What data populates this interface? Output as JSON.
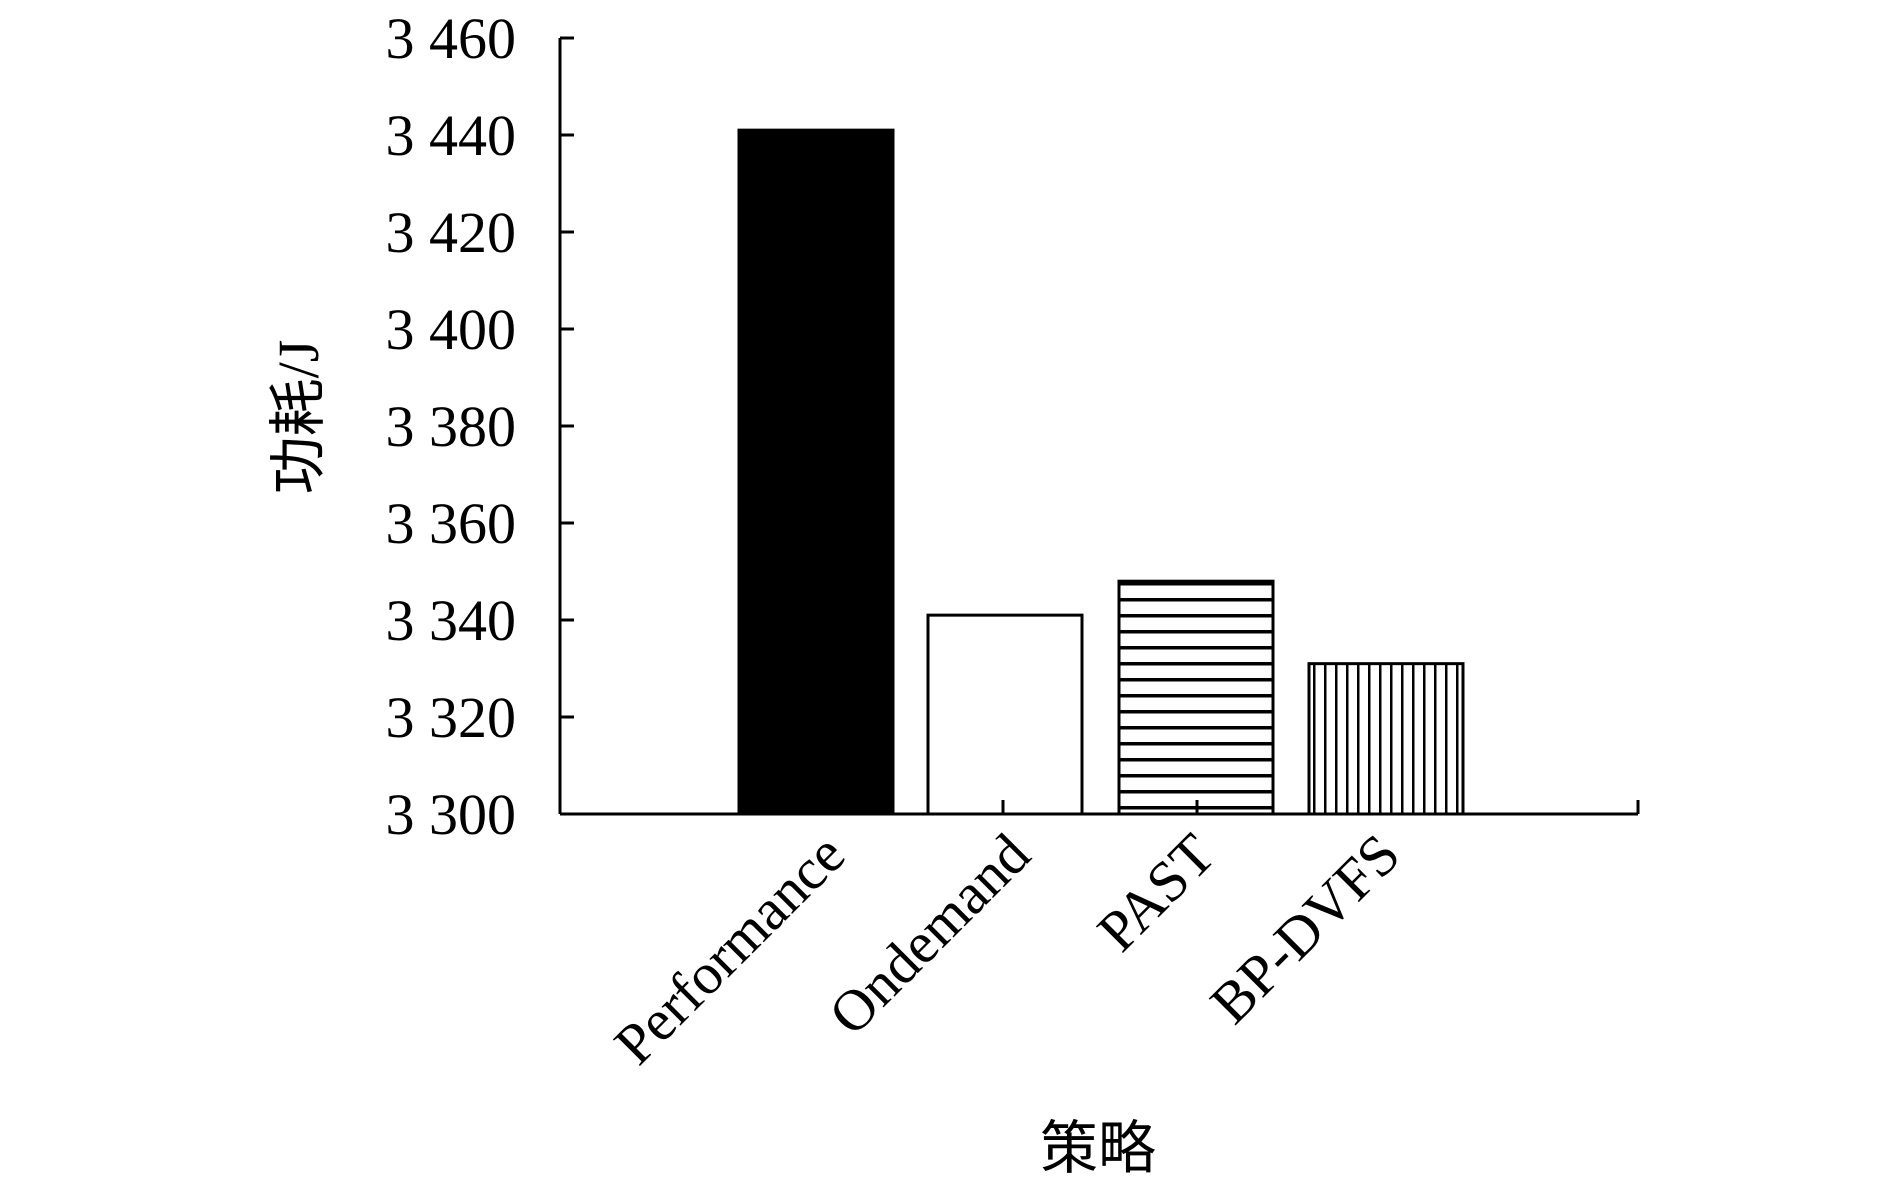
{
  "chart_data": {
    "type": "bar",
    "title": "",
    "xlabel": "策略",
    "ylabel": "功耗/J",
    "categories": [
      "Performance",
      "Ondemand",
      "PAST",
      "BP-DVFS"
    ],
    "values": [
      3441,
      3341,
      3348,
      3331
    ],
    "ylim": [
      3300,
      3460
    ],
    "yticks": [
      3300,
      3320,
      3340,
      3360,
      3380,
      3400,
      3420,
      3440,
      3460
    ],
    "ytick_labels": [
      "3 300",
      "3 320",
      "3 340",
      "3 360",
      "3 380",
      "3 400",
      "3 420",
      "3 440",
      "3 460"
    ],
    "bar_fills": [
      "solid-black",
      "white",
      "horizontal-stripes",
      "vertical-stripes"
    ],
    "grid": false,
    "legend": "none"
  }
}
